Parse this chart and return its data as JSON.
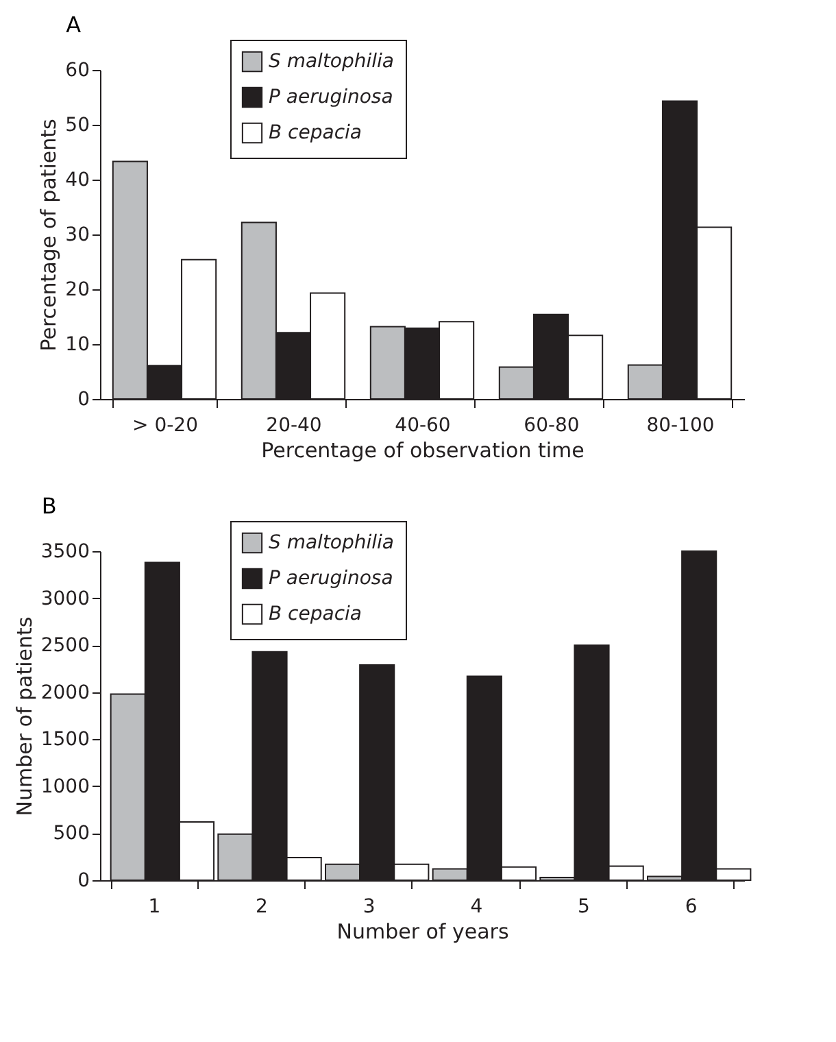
{
  "chart_data": [
    {
      "type": "bar",
      "title": "A",
      "xlabel": "Percentage of observation time",
      "ylabel": "Percentage of patients",
      "categories": [
        "> 0-20",
        "20-40",
        "40-60",
        "60-80",
        "80-100"
      ],
      "series": [
        {
          "name": "S maltophilia",
          "color": "#bcbec0",
          "values": [
            43.3,
            32.2,
            13.2,
            5.8,
            6.2
          ]
        },
        {
          "name": "P aeruginosa",
          "color": "#231f20",
          "values": [
            6.1,
            12.1,
            12.9,
            15.4,
            54.3
          ]
        },
        {
          "name": "B cepacia",
          "color": "#ffffff",
          "values": [
            25.4,
            19.3,
            14.1,
            11.6,
            31.3
          ]
        }
      ],
      "ylim": [
        0,
        60
      ],
      "yticks": [
        0,
        10,
        20,
        30,
        40,
        50,
        60
      ],
      "grid": false,
      "legend": "top left"
    },
    {
      "type": "bar",
      "title": "B",
      "xlabel": "Number of years",
      "ylabel": "Number of patients",
      "categories": [
        "1",
        "2",
        "3",
        "4",
        "5",
        "6"
      ],
      "series": [
        {
          "name": "S maltophilia",
          "color": "#bcbec0",
          "values": [
            1980,
            490,
            170,
            120,
            30,
            40
          ]
        },
        {
          "name": "P aeruginosa",
          "color": "#231f20",
          "values": [
            3380,
            2430,
            2290,
            2170,
            2500,
            3500
          ]
        },
        {
          "name": "B cepacia",
          "color": "#ffffff",
          "values": [
            620,
            240,
            170,
            140,
            150,
            120
          ]
        }
      ],
      "ylim": [
        0,
        3500
      ],
      "yticks": [
        0,
        500,
        1000,
        1500,
        2000,
        2500,
        3000,
        3500
      ],
      "grid": false,
      "legend": "top left"
    }
  ]
}
